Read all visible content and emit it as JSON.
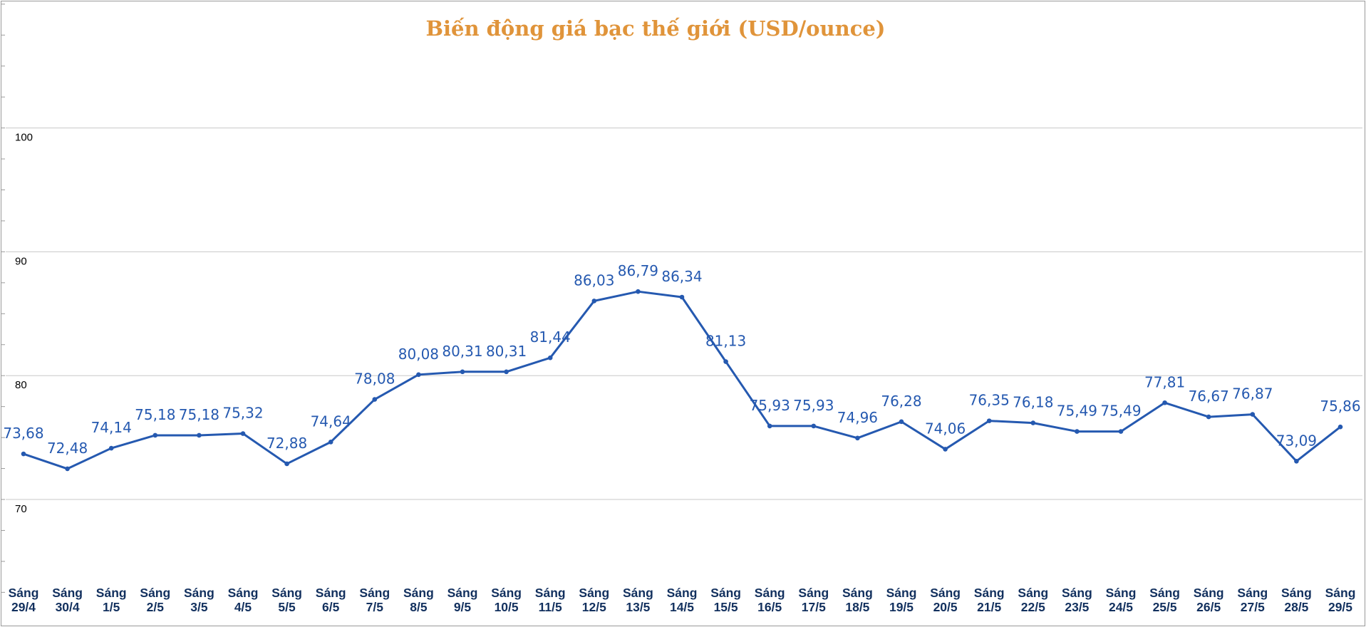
{
  "chart_data": {
    "type": "line",
    "title": "Biến động giá bạc thế giới (USD/ounce)",
    "xlabel": "",
    "ylabel": "",
    "ylim": [
      60,
      110
    ],
    "yticks": [
      70,
      80,
      90,
      100
    ],
    "grid": true,
    "legend": "none",
    "categories": [
      [
        "Sáng",
        "29/4"
      ],
      [
        "Sáng",
        "30/4"
      ],
      [
        "Sáng",
        "1/5"
      ],
      [
        "Sáng",
        "2/5"
      ],
      [
        "Sáng",
        "3/5"
      ],
      [
        "Sáng",
        "4/5"
      ],
      [
        "Sáng",
        "5/5"
      ],
      [
        "Sáng",
        "6/5"
      ],
      [
        "Sáng",
        "7/5"
      ],
      [
        "Sáng",
        "8/5"
      ],
      [
        "Sáng",
        "9/5"
      ],
      [
        "Sáng",
        "10/5"
      ],
      [
        "Sáng",
        "11/5"
      ],
      [
        "Sáng",
        "12/5"
      ],
      [
        "Sáng",
        "13/5"
      ],
      [
        "Sáng",
        "14/5"
      ],
      [
        "Sáng",
        "15/5"
      ],
      [
        "Sáng",
        "16/5"
      ],
      [
        "Sáng",
        "17/5"
      ],
      [
        "Sáng",
        "18/5"
      ],
      [
        "Sáng",
        "19/5"
      ],
      [
        "Sáng",
        "20/5"
      ],
      [
        "Sáng",
        "21/5"
      ],
      [
        "Sáng",
        "22/5"
      ],
      [
        "Sáng",
        "23/5"
      ],
      [
        "Sáng",
        "24/5"
      ],
      [
        "Sáng",
        "25/5"
      ],
      [
        "Sáng",
        "26/5"
      ],
      [
        "Sáng",
        "27/5"
      ],
      [
        "Sáng",
        "28/5"
      ],
      [
        "Sáng",
        "29/5"
      ]
    ],
    "values": [
      73.68,
      72.48,
      74.14,
      75.18,
      75.18,
      75.32,
      72.88,
      74.64,
      78.08,
      80.08,
      80.31,
      80.31,
      81.44,
      86.03,
      86.79,
      86.34,
      81.13,
      75.93,
      75.93,
      74.96,
      76.28,
      74.06,
      76.35,
      76.18,
      75.49,
      75.49,
      77.81,
      76.67,
      76.87,
      73.09,
      75.86
    ],
    "data_labels": [
      "73,68",
      "72,48",
      "74,14",
      "75,18",
      "75,18",
      "75,32",
      "72,88",
      "74,64",
      "78,08",
      "80,08",
      "80,31",
      "80,31",
      "81,44",
      "86,03",
      "86,79",
      "86,34",
      "81,13",
      "75,93",
      "75,93",
      "74,96",
      "76,28",
      "74,06",
      "76,35",
      "76,18",
      "75,49",
      "75,49",
      "77,81",
      "76,67",
      "76,87",
      "73,09",
      "75,86"
    ],
    "colors": {
      "title": "#e0943a",
      "line": "#2559b0",
      "labels": "#2559b0",
      "xticks": "#12305e",
      "grid": "#c8c8c8"
    }
  }
}
